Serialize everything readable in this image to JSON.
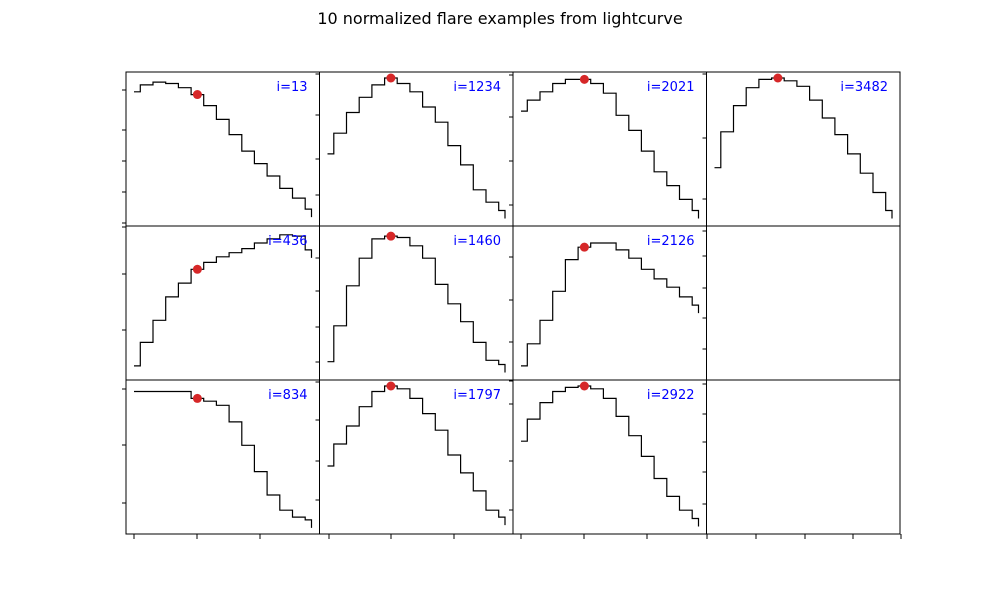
{
  "title": "10 normalized flare examples from lightcurve",
  "colors": {
    "line": "#000000",
    "peak_marker": "#d62728",
    "label": "#0000ff",
    "frame": "#000000"
  },
  "chart_data": {
    "type": "line",
    "grid": "3x4",
    "grid_lines": false,
    "step_style": "steps-mid",
    "panels": [
      {
        "label": "i=13",
        "peak_index": 5,
        "values": [
          0.9,
          0.95,
          0.97,
          0.96,
          0.93,
          0.88,
          0.8,
          0.7,
          0.59,
          0.47,
          0.38,
          0.29,
          0.2,
          0.13,
          0.05
        ]
      },
      {
        "label": "i=1234",
        "peak_index": 5,
        "values": [
          0.45,
          0.6,
          0.75,
          0.86,
          0.95,
          1.0,
          0.96,
          0.9,
          0.79,
          0.68,
          0.51,
          0.37,
          0.19,
          0.1,
          0.04
        ]
      },
      {
        "label": "i=2021",
        "peak_index": 5,
        "values": [
          0.76,
          0.84,
          0.9,
          0.96,
          0.99,
          0.99,
          0.96,
          0.89,
          0.73,
          0.62,
          0.47,
          0.32,
          0.22,
          0.12,
          0.04
        ]
      },
      {
        "label": "i=3482",
        "peak_index": 5,
        "values": [
          0.35,
          0.61,
          0.8,
          0.93,
          0.99,
          1.0,
          0.98,
          0.94,
          0.84,
          0.71,
          0.59,
          0.45,
          0.31,
          0.17,
          0.04
        ]
      },
      {
        "label": "i=436",
        "peak_index": 5,
        "values": [
          0.03,
          0.2,
          0.36,
          0.53,
          0.63,
          0.73,
          0.78,
          0.82,
          0.85,
          0.88,
          0.92,
          0.95,
          0.98,
          0.97,
          0.87
        ]
      },
      {
        "label": "i=1460",
        "peak_index": 5,
        "values": [
          0.06,
          0.32,
          0.61,
          0.81,
          0.95,
          0.97,
          0.96,
          0.9,
          0.81,
          0.62,
          0.48,
          0.35,
          0.2,
          0.07,
          0.04
        ]
      },
      {
        "label": "i=2126",
        "peak_index": 5,
        "values": [
          0.03,
          0.19,
          0.36,
          0.57,
          0.8,
          0.89,
          0.92,
          0.92,
          0.87,
          0.81,
          0.73,
          0.66,
          0.6,
          0.53,
          0.47
        ]
      },
      {
        "label": "i=834",
        "peak_index": 5,
        "values": [
          0.96,
          0.96,
          0.96,
          0.96,
          0.96,
          0.91,
          0.89,
          0.86,
          0.74,
          0.57,
          0.38,
          0.21,
          0.1,
          0.05,
          0.03
        ]
      },
      {
        "label": "i=1797",
        "peak_index": 5,
        "values": [
          0.42,
          0.58,
          0.71,
          0.85,
          0.96,
          1.0,
          0.98,
          0.91,
          0.8,
          0.68,
          0.5,
          0.37,
          0.24,
          0.1,
          0.05
        ]
      },
      {
        "label": "i=2922",
        "peak_index": 5,
        "values": [
          0.6,
          0.76,
          0.88,
          0.96,
          0.99,
          1.0,
          0.98,
          0.91,
          0.78,
          0.64,
          0.49,
          0.33,
          0.2,
          0.1,
          0.04
        ]
      }
    ]
  }
}
